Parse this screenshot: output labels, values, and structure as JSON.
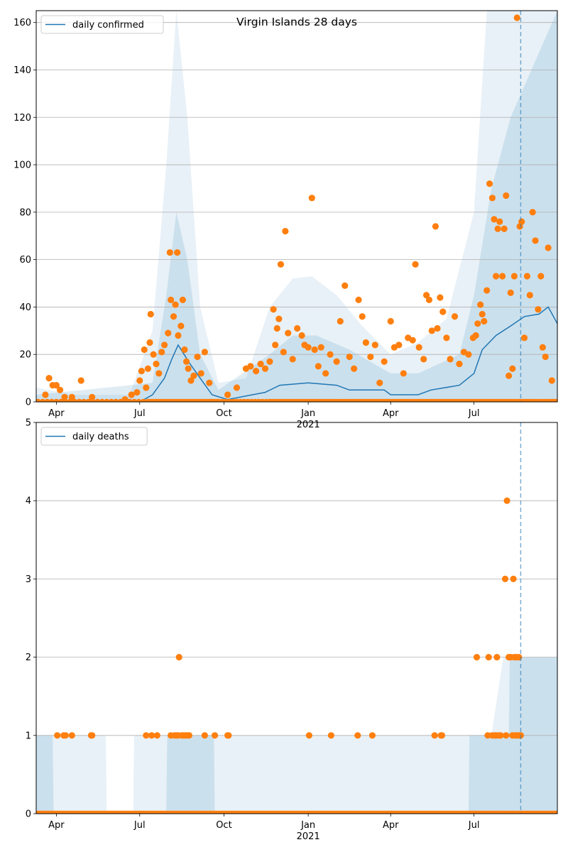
{
  "chart_data": [
    {
      "type": "scatter",
      "title": "Virgin Islands 28 days",
      "legend": [
        "daily confirmed"
      ],
      "legend_position": "top-left",
      "ylim": [
        0,
        165
      ],
      "yticks": [
        0,
        20,
        40,
        60,
        80,
        100,
        120,
        140,
        160
      ],
      "grid": "horizontal",
      "xlim": [
        "2020-03-10",
        "2021-09-30"
      ],
      "vline": "2021-08-21",
      "xticks": [
        {
          "date": "2020-04-01",
          "label": "Apr"
        },
        {
          "date": "2020-07-01",
          "label": "Jul"
        },
        {
          "date": "2020-10-01",
          "label": "Oct"
        },
        {
          "date": "2021-01-01",
          "label": "Jan"
        },
        {
          "date": "2021-04-01",
          "label": "Apr"
        },
        {
          "date": "2021-07-01",
          "label": "Jul"
        }
      ],
      "year_label": "2021",
      "trend_line": [
        [
          "2020-03-10",
          0
        ],
        [
          "2020-07-01",
          0
        ],
        [
          "2020-07-15",
          3
        ],
        [
          "2020-07-28",
          10
        ],
        [
          "2020-08-05",
          18
        ],
        [
          "2020-08-12",
          24
        ],
        [
          "2020-08-25",
          16
        ],
        [
          "2020-09-05",
          10
        ],
        [
          "2020-09-18",
          3
        ],
        [
          "2020-10-05",
          1
        ],
        [
          "2020-11-01",
          3
        ],
        [
          "2020-11-15",
          4
        ],
        [
          "2020-12-01",
          7
        ],
        [
          "2021-01-01",
          8
        ],
        [
          "2021-02-01",
          7
        ],
        [
          "2021-02-15",
          5
        ],
        [
          "2021-03-25",
          5
        ],
        [
          "2021-04-01",
          3
        ],
        [
          "2021-05-01",
          3
        ],
        [
          "2021-05-15",
          5
        ],
        [
          "2021-06-15",
          7
        ],
        [
          "2021-07-01",
          12
        ],
        [
          "2021-07-10",
          22
        ],
        [
          "2021-07-25",
          28
        ],
        [
          "2021-08-10",
          32
        ],
        [
          "2021-08-25",
          36
        ],
        [
          "2021-09-10",
          37
        ],
        [
          "2021-09-20",
          40
        ],
        [
          "2021-09-30",
          33
        ]
      ],
      "band_outer_upper": [
        [
          "2020-03-10",
          6
        ],
        [
          "2020-04-20",
          3
        ],
        [
          "2020-06-20",
          3
        ],
        [
          "2020-07-15",
          30
        ],
        [
          "2020-07-30",
          100
        ],
        [
          "2020-08-10",
          165
        ],
        [
          "2020-08-22",
          120
        ],
        [
          "2020-09-05",
          40
        ],
        [
          "2020-09-25",
          8
        ],
        [
          "2020-10-25",
          10
        ],
        [
          "2020-11-20",
          40
        ],
        [
          "2020-12-15",
          52
        ],
        [
          "2021-01-05",
          53
        ],
        [
          "2021-02-01",
          45
        ],
        [
          "2021-03-01",
          32
        ],
        [
          "2021-04-01",
          20
        ],
        [
          "2021-05-01",
          25
        ],
        [
          "2021-06-01",
          35
        ],
        [
          "2021-07-01",
          80
        ],
        [
          "2021-07-15",
          165
        ],
        [
          "2021-09-30",
          165
        ]
      ],
      "band_inner_upper": [
        [
          "2020-03-10",
          3
        ],
        [
          "2020-07-15",
          8
        ],
        [
          "2020-07-30",
          45
        ],
        [
          "2020-08-10",
          80
        ],
        [
          "2020-08-22",
          60
        ],
        [
          "2020-09-05",
          20
        ],
        [
          "2020-09-25",
          5
        ],
        [
          "2020-11-20",
          20
        ],
        [
          "2020-12-15",
          28
        ],
        [
          "2021-01-10",
          28
        ],
        [
          "2021-02-15",
          22
        ],
        [
          "2021-04-01",
          12
        ],
        [
          "2021-05-01",
          12
        ],
        [
          "2021-06-15",
          20
        ],
        [
          "2021-07-01",
          45
        ],
        [
          "2021-07-20",
          90
        ],
        [
          "2021-08-10",
          120
        ],
        [
          "2021-09-30",
          165
        ]
      ],
      "points": [
        [
          "2020-03-20",
          3
        ],
        [
          "2020-03-24",
          10
        ],
        [
          "2020-03-28",
          7
        ],
        [
          "2020-04-01",
          7
        ],
        [
          "2020-04-05",
          5
        ],
        [
          "2020-04-10",
          2
        ],
        [
          "2020-04-18",
          2
        ],
        [
          "2020-04-28",
          9
        ],
        [
          "2020-05-10",
          2
        ],
        [
          "2020-06-15",
          1
        ],
        [
          "2020-06-22",
          3
        ],
        [
          "2020-06-28",
          4
        ],
        [
          "2020-07-01",
          9
        ],
        [
          "2020-07-03",
          13
        ],
        [
          "2020-07-06",
          22
        ],
        [
          "2020-07-08",
          6
        ],
        [
          "2020-07-10",
          14
        ],
        [
          "2020-07-12",
          25
        ],
        [
          "2020-07-13",
          37
        ],
        [
          "2020-07-16",
          20
        ],
        [
          "2020-07-19",
          16
        ],
        [
          "2020-07-22",
          12
        ],
        [
          "2020-07-25",
          21
        ],
        [
          "2020-07-28",
          24
        ],
        [
          "2020-08-01",
          29
        ],
        [
          "2020-08-03",
          63
        ],
        [
          "2020-08-04",
          43
        ],
        [
          "2020-08-07",
          36
        ],
        [
          "2020-08-09",
          41
        ],
        [
          "2020-08-11",
          63
        ],
        [
          "2020-08-12",
          28
        ],
        [
          "2020-08-15",
          32
        ],
        [
          "2020-08-17",
          43
        ],
        [
          "2020-08-19",
          22
        ],
        [
          "2020-08-21",
          17
        ],
        [
          "2020-08-23",
          14
        ],
        [
          "2020-08-26",
          9
        ],
        [
          "2020-08-29",
          11
        ],
        [
          "2020-09-02",
          19
        ],
        [
          "2020-09-06",
          12
        ],
        [
          "2020-09-10",
          21
        ],
        [
          "2020-09-15",
          8
        ],
        [
          "2020-10-05",
          3
        ],
        [
          "2020-10-15",
          6
        ],
        [
          "2020-10-25",
          14
        ],
        [
          "2020-10-30",
          15
        ],
        [
          "2020-11-05",
          13
        ],
        [
          "2020-11-10",
          16
        ],
        [
          "2020-11-15",
          14
        ],
        [
          "2020-11-20",
          17
        ],
        [
          "2020-11-24",
          39
        ],
        [
          "2020-11-26",
          24
        ],
        [
          "2020-11-28",
          31
        ],
        [
          "2020-11-30",
          35
        ],
        [
          "2020-12-02",
          58
        ],
        [
          "2020-12-05",
          21
        ],
        [
          "2020-12-07",
          72
        ],
        [
          "2020-12-10",
          29
        ],
        [
          "2020-12-15",
          18
        ],
        [
          "2020-12-20",
          31
        ],
        [
          "2020-12-25",
          28
        ],
        [
          "2020-12-28",
          24
        ],
        [
          "2021-01-01",
          23
        ],
        [
          "2021-01-05",
          86
        ],
        [
          "2021-01-08",
          22
        ],
        [
          "2021-01-12",
          15
        ],
        [
          "2021-01-15",
          23
        ],
        [
          "2021-01-20",
          12
        ],
        [
          "2021-01-25",
          20
        ],
        [
          "2021-02-01",
          17
        ],
        [
          "2021-02-05",
          34
        ],
        [
          "2021-02-10",
          49
        ],
        [
          "2021-02-15",
          19
        ],
        [
          "2021-02-20",
          14
        ],
        [
          "2021-02-25",
          43
        ],
        [
          "2021-03-01",
          36
        ],
        [
          "2021-03-05",
          25
        ],
        [
          "2021-03-10",
          19
        ],
        [
          "2021-03-15",
          24
        ],
        [
          "2021-03-20",
          8
        ],
        [
          "2021-03-25",
          17
        ],
        [
          "2021-04-01",
          34
        ],
        [
          "2021-04-05",
          23
        ],
        [
          "2021-04-10",
          24
        ],
        [
          "2021-04-15",
          12
        ],
        [
          "2021-04-20",
          27
        ],
        [
          "2021-04-25",
          26
        ],
        [
          "2021-04-28",
          58
        ],
        [
          "2021-05-02",
          23
        ],
        [
          "2021-05-07",
          18
        ],
        [
          "2021-05-10",
          45
        ],
        [
          "2021-05-13",
          43
        ],
        [
          "2021-05-16",
          30
        ],
        [
          "2021-05-20",
          74
        ],
        [
          "2021-05-22",
          31
        ],
        [
          "2021-05-25",
          44
        ],
        [
          "2021-05-28",
          38
        ],
        [
          "2021-06-01",
          27
        ],
        [
          "2021-06-05",
          18
        ],
        [
          "2021-06-10",
          36
        ],
        [
          "2021-06-15",
          16
        ],
        [
          "2021-06-20",
          21
        ],
        [
          "2021-06-25",
          20
        ],
        [
          "2021-06-30",
          27
        ],
        [
          "2021-07-03",
          28
        ],
        [
          "2021-07-05",
          33
        ],
        [
          "2021-07-08",
          41
        ],
        [
          "2021-07-10",
          37
        ],
        [
          "2021-07-12",
          34
        ],
        [
          "2021-07-15",
          47
        ],
        [
          "2021-07-18",
          92
        ],
        [
          "2021-07-21",
          86
        ],
        [
          "2021-07-23",
          77
        ],
        [
          "2021-07-25",
          53
        ],
        [
          "2021-07-27",
          73
        ],
        [
          "2021-07-29",
          76
        ],
        [
          "2021-08-01",
          53
        ],
        [
          "2021-08-03",
          73
        ],
        [
          "2021-08-05",
          87
        ],
        [
          "2021-08-08",
          11
        ],
        [
          "2021-08-10",
          46
        ],
        [
          "2021-08-12",
          14
        ],
        [
          "2021-08-14",
          53
        ],
        [
          "2021-08-17",
          162
        ],
        [
          "2021-08-20",
          74
        ],
        [
          "2021-08-22",
          76
        ],
        [
          "2021-08-25",
          27
        ],
        [
          "2021-08-28",
          53
        ],
        [
          "2021-08-31",
          45
        ],
        [
          "2021-09-03",
          80
        ],
        [
          "2021-09-06",
          68
        ],
        [
          "2021-09-09",
          39
        ],
        [
          "2021-09-12",
          53
        ],
        [
          "2021-09-14",
          23
        ],
        [
          "2021-09-17",
          19
        ],
        [
          "2021-09-20",
          65
        ],
        [
          "2021-09-24",
          9
        ]
      ],
      "zero_dates": [
        [
          "2020-03-12",
          "2020-07-10",
          5
        ],
        [
          "2020-07-10",
          "2020-09-25",
          3
        ],
        [
          "2020-09-25",
          "2020-11-20",
          4
        ],
        [
          "2020-11-20",
          "2021-09-30",
          3
        ]
      ]
    },
    {
      "type": "scatter",
      "legend": [
        "daily deaths"
      ],
      "legend_position": "top-left",
      "ylim": [
        0,
        5
      ],
      "yticks": [
        0,
        1,
        2,
        3,
        4,
        5
      ],
      "grid": "horizontal",
      "xlim": [
        "2020-03-10",
        "2021-09-30"
      ],
      "vline": "2021-08-21",
      "xticks": [
        {
          "date": "2020-04-01",
          "label": "Apr"
        },
        {
          "date": "2020-07-01",
          "label": "Jul"
        },
        {
          "date": "2020-10-01",
          "label": "Oct"
        },
        {
          "date": "2021-01-01",
          "label": "Jan"
        },
        {
          "date": "2021-04-01",
          "label": "Apr"
        },
        {
          "date": "2021-07-01",
          "label": "Jul"
        }
      ],
      "year_label": "2021",
      "trend_line": [
        [
          "2020-03-10",
          0
        ],
        [
          "2021-09-30",
          0
        ]
      ],
      "band_outer_upper": [
        [
          "2020-03-10",
          1
        ],
        [
          "2020-05-25",
          1
        ],
        [
          "2020-05-26",
          0
        ],
        [
          "2020-06-24",
          0
        ],
        [
          "2020-06-25",
          1
        ],
        [
          "2021-07-20",
          1
        ],
        [
          "2021-08-02",
          2
        ],
        [
          "2021-09-29",
          2
        ],
        [
          "2021-09-30",
          3
        ]
      ],
      "band_inner_upper": [
        [
          "2020-03-10",
          1
        ],
        [
          "2020-03-28",
          1
        ],
        [
          "2020-03-29",
          0
        ],
        [
          "2020-07-30",
          0
        ],
        [
          "2020-07-31",
          1
        ],
        [
          "2020-09-20",
          1
        ],
        [
          "2020-09-21",
          0
        ],
        [
          "2021-06-25",
          0
        ],
        [
          "2021-06-26",
          1
        ],
        [
          "2021-08-08",
          1
        ],
        [
          "2021-08-09",
          2
        ],
        [
          "2021-09-30",
          2
        ]
      ],
      "points": [
        [
          "2020-04-02",
          1
        ],
        [
          "2020-04-09",
          1
        ],
        [
          "2020-04-11",
          1
        ],
        [
          "2020-04-18",
          1
        ],
        [
          "2020-05-09",
          1
        ],
        [
          "2020-05-10",
          1
        ],
        [
          "2020-07-08",
          1
        ],
        [
          "2020-07-14",
          1
        ],
        [
          "2020-07-20",
          1
        ],
        [
          "2020-08-04",
          1
        ],
        [
          "2020-08-08",
          1
        ],
        [
          "2020-08-10",
          1
        ],
        [
          "2020-08-12",
          1
        ],
        [
          "2020-08-13",
          2
        ],
        [
          "2020-08-16",
          1
        ],
        [
          "2020-08-18",
          1
        ],
        [
          "2020-08-20",
          1
        ],
        [
          "2020-08-22",
          1
        ],
        [
          "2020-08-24",
          1
        ],
        [
          "2020-09-10",
          1
        ],
        [
          "2020-09-21",
          1
        ],
        [
          "2020-10-05",
          1
        ],
        [
          "2020-10-06",
          1
        ],
        [
          "2021-01-02",
          1
        ],
        [
          "2021-01-26",
          1
        ],
        [
          "2021-02-24",
          1
        ],
        [
          "2021-03-12",
          1
        ],
        [
          "2021-05-19",
          1
        ],
        [
          "2021-05-26",
          1
        ],
        [
          "2021-05-27",
          1
        ],
        [
          "2021-07-04",
          2
        ],
        [
          "2021-07-16",
          1
        ],
        [
          "2021-07-17",
          2
        ],
        [
          "2021-07-21",
          1
        ],
        [
          "2021-07-24",
          1
        ],
        [
          "2021-07-25",
          1
        ],
        [
          "2021-07-26",
          2
        ],
        [
          "2021-07-28",
          1
        ],
        [
          "2021-07-30",
          1
        ],
        [
          "2021-08-04",
          3
        ],
        [
          "2021-08-05",
          1
        ],
        [
          "2021-08-06",
          4
        ],
        [
          "2021-08-08",
          2
        ],
        [
          "2021-08-10",
          2
        ],
        [
          "2021-08-12",
          1
        ],
        [
          "2021-08-13",
          3
        ],
        [
          "2021-08-14",
          2
        ],
        [
          "2021-08-15",
          1
        ],
        [
          "2021-08-16",
          2
        ],
        [
          "2021-08-17",
          1
        ],
        [
          "2021-08-18",
          1
        ],
        [
          "2021-08-19",
          2
        ],
        [
          "2021-08-20",
          1
        ],
        [
          "2021-08-21",
          1
        ]
      ],
      "zero_dates": [
        [
          "2020-03-12",
          "2021-09-30",
          2
        ]
      ]
    }
  ]
}
